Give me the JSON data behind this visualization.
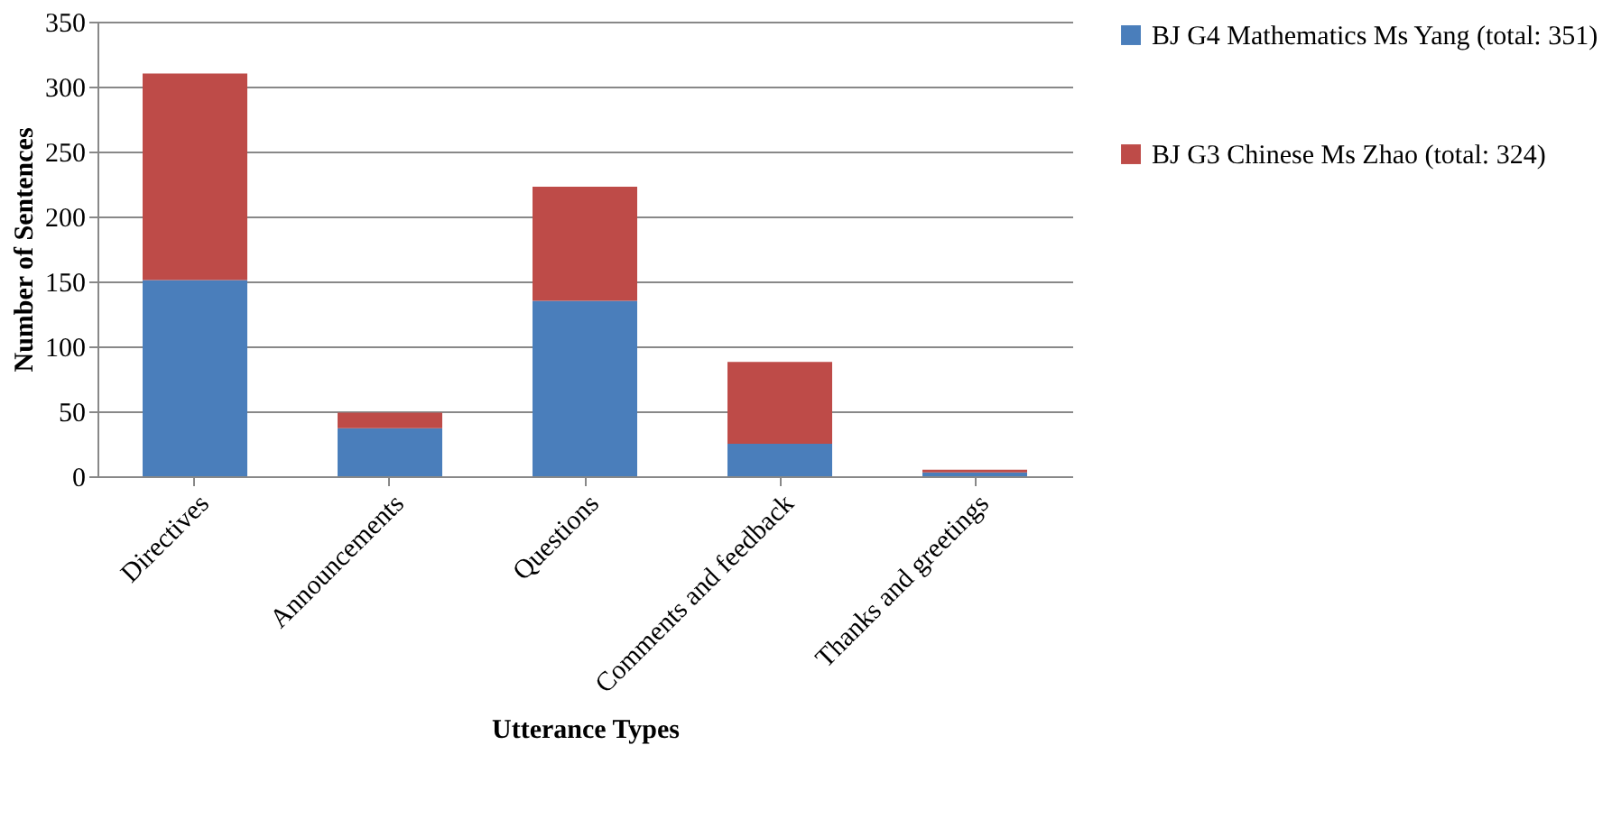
{
  "chart_data": {
    "type": "bar",
    "stacked": true,
    "xlabel": "Utterance Types",
    "ylabel": "Number of Sentences",
    "categories": [
      "Directives",
      "Announcements",
      "Questions",
      "Comments and feedback",
      "Thanks and greetings"
    ],
    "series": [
      {
        "name": "BJ G4 Mathematics Ms Yang (total: 351)",
        "color": "#4a7ebb",
        "values": [
          151,
          37,
          135,
          25,
          3
        ]
      },
      {
        "name": "BJ G3 Chinese Ms Zhao (total: 324)",
        "color": "#be4b48",
        "values": [
          159,
          12,
          88,
          63,
          2
        ]
      }
    ],
    "ylim": [
      0,
      350
    ],
    "yticks": [
      0,
      50,
      100,
      150,
      200,
      250,
      300,
      350
    ],
    "grid": "y",
    "legend": "right"
  }
}
